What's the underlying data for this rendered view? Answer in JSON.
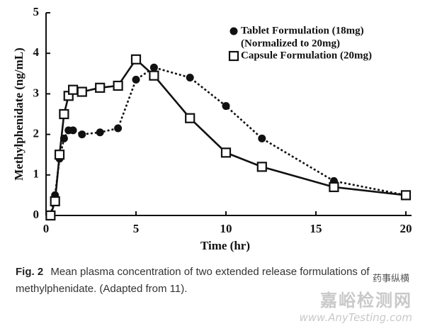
{
  "chart_data": {
    "type": "line",
    "x_label": "Time (hr)",
    "y_label": "Methylphenidate (ng/mL)",
    "x": [
      0.25,
      0.5,
      0.75,
      1,
      1.25,
      1.5,
      2,
      3,
      4,
      5,
      6,
      8,
      10,
      12,
      16,
      20
    ],
    "series": [
      {
        "name": "Tablet Formulation (18mg)",
        "note": "(Normalized to 20mg)",
        "color": "#111111",
        "marker": "dot",
        "dashed": true,
        "values": [
          0,
          0.5,
          1.4,
          1.9,
          2.1,
          2.1,
          2.0,
          2.05,
          2.15,
          3.35,
          3.65,
          3.4,
          2.7,
          1.9,
          0.85,
          0.5
        ]
      },
      {
        "name": "Capsule Formulation (20mg)",
        "color": "#111111",
        "marker": "square",
        "dashed": false,
        "values": [
          0,
          0.35,
          1.5,
          2.5,
          2.95,
          3.1,
          3.05,
          3.15,
          3.2,
          3.85,
          3.45,
          2.4,
          1.55,
          1.2,
          0.7,
          0.5
        ]
      }
    ],
    "xlim": [
      0,
      20
    ],
    "xticks": [
      0,
      5,
      10,
      15,
      20
    ],
    "ylim": [
      0,
      5
    ],
    "yticks": [
      0,
      1,
      2,
      3,
      4,
      5
    ]
  },
  "caption": {
    "label": "Fig. 2",
    "text": "Mean plasma concentration of two extended release formulations of methylphenidate. (Adapted from 11)."
  },
  "watermark": {
    "title": "嘉峪检测网",
    "url": "www.AnyTesting.com",
    "tag": "药事纵横"
  }
}
